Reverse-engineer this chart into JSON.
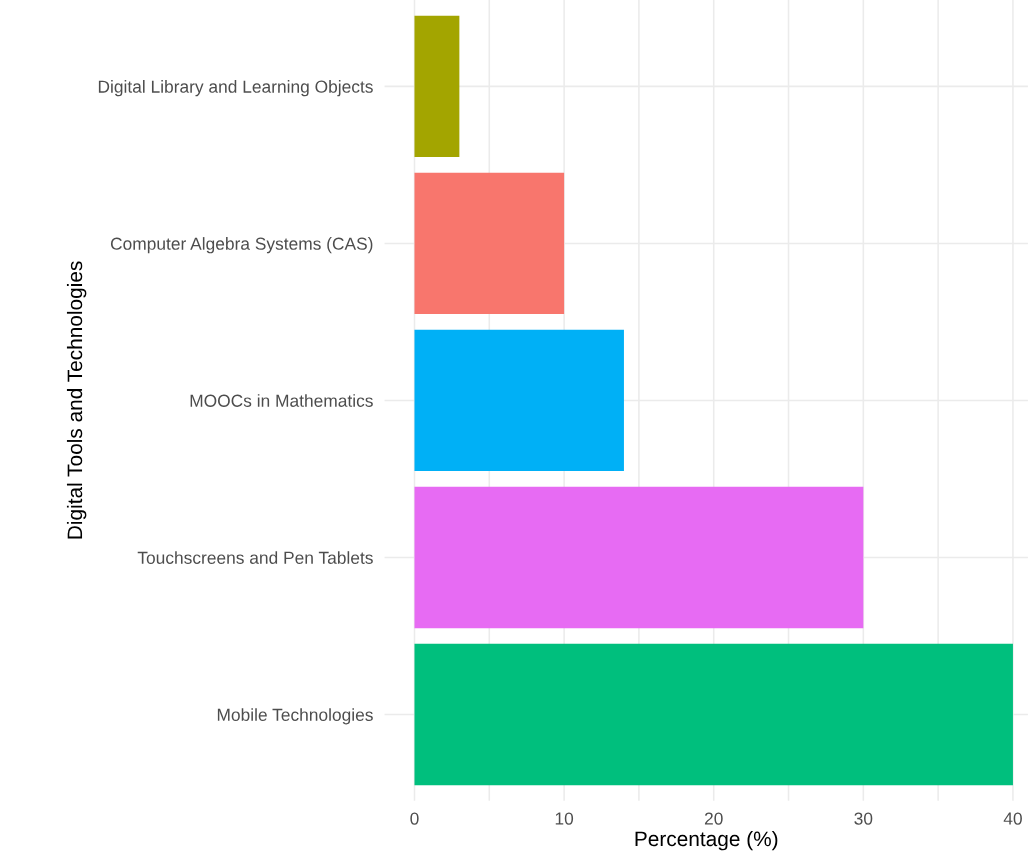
{
  "chart_data": {
    "type": "bar",
    "orientation": "horizontal",
    "xlabel": "Percentage (%)",
    "ylabel": "Digital Tools and Technologies",
    "categories": [
      "Digital Library and Learning Objects",
      "Computer Algebra Systems (CAS)",
      "MOOCs in Mathematics",
      "Touchscreens and Pen Tablets",
      "Mobile Technologies"
    ],
    "values": [
      3,
      10,
      14,
      30,
      40
    ],
    "colors": [
      "#a3a500",
      "#f8766d",
      "#00b0f6",
      "#e76bf3",
      "#00bf7d"
    ],
    "xlim": [
      -2,
      41
    ],
    "xticks": [
      0,
      {
        "value": 5,
        "label": null
      },
      10,
      {
        "value": 15,
        "label": null
      },
      20,
      {
        "value": 25,
        "label": null
      },
      30,
      {
        "value": 35,
        "label": null
      },
      40
    ],
    "grid": true,
    "legend": false
  }
}
